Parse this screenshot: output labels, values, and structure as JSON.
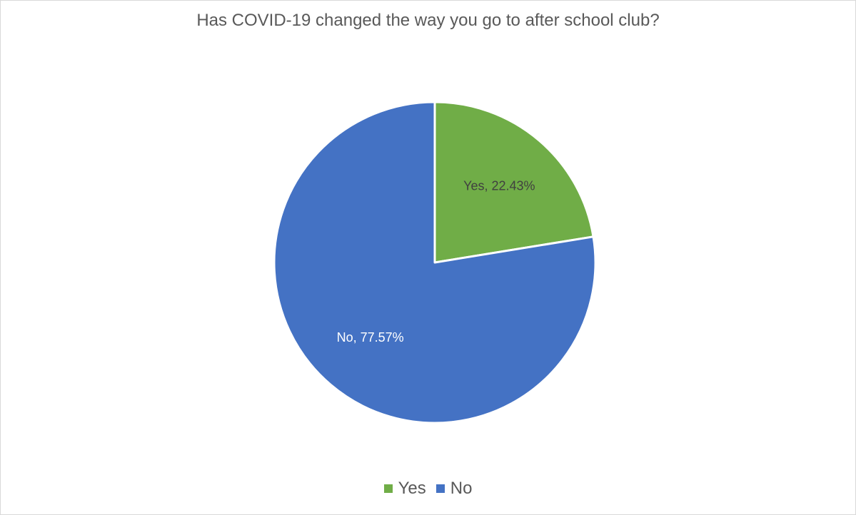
{
  "chart_data": {
    "type": "pie",
    "title": "Has COVID-19 changed the way you go to after school club?",
    "slices": [
      {
        "name": "Yes",
        "value": 22.43,
        "label": "Yes, 22.43%",
        "color": "#70AD47",
        "label_color": "#404040"
      },
      {
        "name": "No",
        "value": 77.57,
        "label": "No, 77.57%",
        "color": "#4472C4",
        "label_color": "#FFFFFF"
      }
    ],
    "legend": {
      "placement": "bottom",
      "entries": [
        {
          "name": "Yes",
          "color": "#70AD47"
        },
        {
          "name": "No",
          "color": "#4472C4"
        }
      ]
    }
  }
}
